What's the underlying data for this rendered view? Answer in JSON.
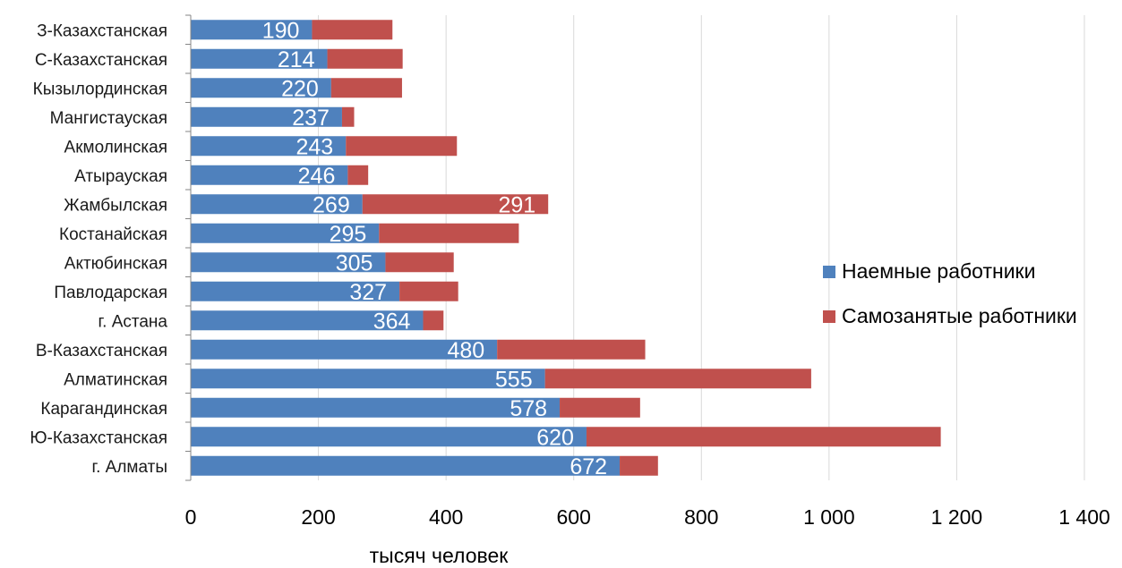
{
  "chart_data": {
    "type": "bar",
    "orientation": "horizontal",
    "stacked": true,
    "xlabel": "тысяч человек",
    "xlim": [
      0,
      1400
    ],
    "xticks": [
      0,
      200,
      400,
      600,
      800,
      1000,
      1200,
      1400
    ],
    "xtick_labels": [
      "0",
      "200",
      "400",
      "600",
      "800",
      "1 000",
      "1 200",
      "1 400"
    ],
    "grid": true,
    "legend_position": "right",
    "categories": [
      "З-Казахстанская",
      "С-Казахстанская",
      "Кызылординская",
      "Мангистауская",
      "Акмолинская",
      "Атырауская",
      "Жамбылская",
      "Костанайская",
      "Актюбинская",
      "Павлодарская",
      "г. Астана",
      "В-Казахстанская",
      "Алматинская",
      "Карагандинская",
      "Ю-Казахстанская",
      "г. Алматы"
    ],
    "series": [
      {
        "name": "Наемные работники",
        "color": "#4f81bd",
        "values": [
          190,
          214,
          220,
          237,
          243,
          246,
          269,
          295,
          305,
          327,
          364,
          480,
          555,
          578,
          620,
          672
        ],
        "data_labels": [
          "190",
          "214",
          "220",
          "237",
          "243",
          "246",
          "269",
          "295",
          "305",
          "327",
          "364",
          "480",
          "555",
          "578",
          "620",
          "672"
        ]
      },
      {
        "name": "Самозанятые работники",
        "color": "#c0504d",
        "values": [
          126,
          118,
          111,
          19,
          174,
          32,
          291,
          219,
          107,
          92,
          32,
          232,
          417,
          126,
          555,
          60
        ],
        "data_labels": [
          "",
          "",
          "",
          "",
          "",
          "",
          "291",
          "",
          "",
          "",
          "",
          "",
          "",
          "",
          "",
          ""
        ]
      }
    ]
  }
}
